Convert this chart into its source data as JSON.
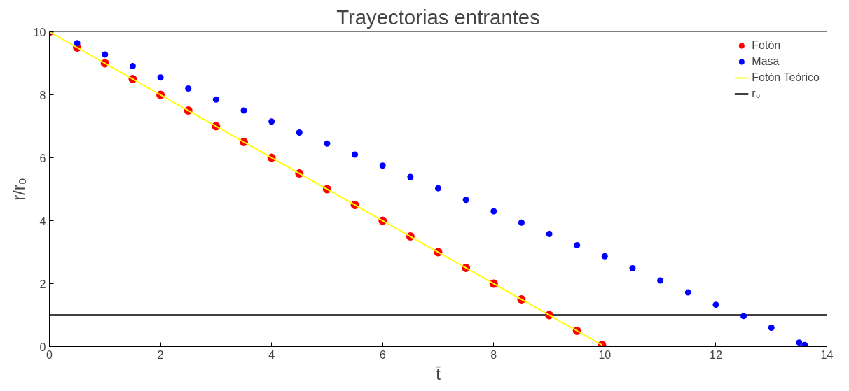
{
  "chart_data": {
    "type": "scatter",
    "title": "Trayectorias entrantes",
    "xlabel": "t̄",
    "ylabel": "r/r₀",
    "xlim": [
      0,
      14
    ],
    "ylim": [
      0,
      10
    ],
    "xticks": [
      0,
      2,
      4,
      6,
      8,
      10,
      12,
      14
    ],
    "yticks": [
      0,
      2,
      4,
      6,
      8,
      10
    ],
    "grid": false,
    "legend": "top right",
    "series": [
      {
        "name": "Fotón",
        "color": "#ff0000",
        "marker": "circle",
        "x": [
          0,
          0.5,
          1,
          1.5,
          2,
          2.5,
          3,
          3.5,
          4,
          4.5,
          5,
          5.5,
          6,
          6.5,
          7,
          7.5,
          8,
          8.5,
          9,
          9.5,
          9.95
        ],
        "values": [
          10,
          9.5,
          9,
          8.5,
          8,
          7.5,
          7,
          6.5,
          6,
          5.5,
          5,
          4.5,
          4,
          3.5,
          3,
          2.5,
          2,
          1.5,
          1,
          0.5,
          0.05
        ]
      },
      {
        "name": "Masa",
        "color": "#0000ff",
        "marker": "circle",
        "x": [
          0,
          0.5,
          1,
          1.5,
          2,
          2.5,
          3,
          3.5,
          4,
          4.5,
          5,
          5.5,
          6,
          6.5,
          7,
          7.5,
          8,
          8.5,
          9,
          9.5,
          10,
          10.5,
          11,
          11.5,
          12,
          12.5,
          13,
          13.5,
          13.6
        ],
        "values": [
          10,
          9.64,
          9.28,
          8.91,
          8.55,
          8.2,
          7.85,
          7.5,
          7.15,
          6.8,
          6.45,
          6.1,
          5.75,
          5.39,
          5.03,
          4.66,
          4.3,
          3.94,
          3.58,
          3.22,
          2.87,
          2.49,
          2.1,
          1.72,
          1.33,
          0.97,
          0.6,
          0.13,
          0.05
        ]
      },
      {
        "name": "Fotón Teórico",
        "type": "line",
        "marker": "none",
        "color": "#ffff00",
        "x": [
          0,
          9.95
        ],
        "values": [
          10,
          0.05
        ]
      }
    ],
    "ref_lines": [
      {
        "axis": "y",
        "value": 1,
        "label": "r₀",
        "color": "#000000"
      }
    ]
  }
}
